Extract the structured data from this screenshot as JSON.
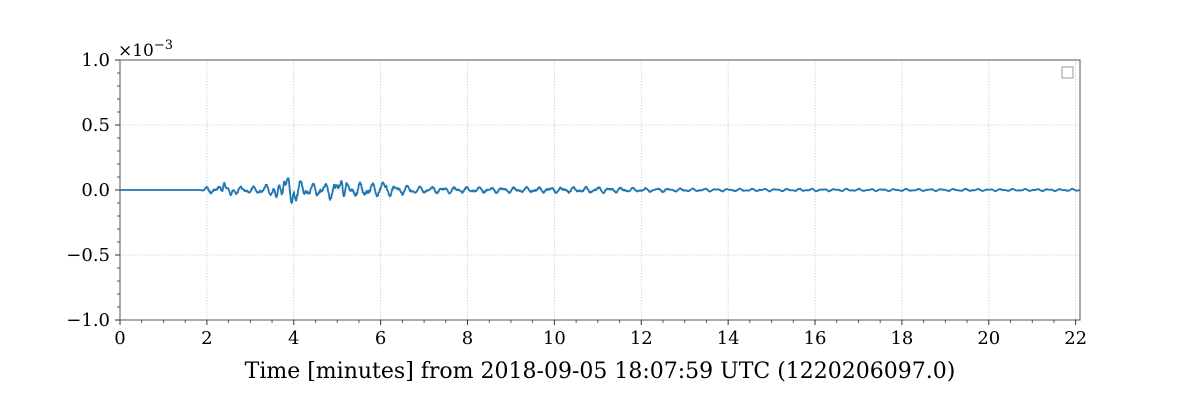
{
  "chart_data": {
    "type": "line",
    "title": "",
    "xlabel": "Time [minutes] from 2018-09-05 18:07:59 UTC (1220206097.0)",
    "ylabel": "",
    "y_offset_text": "×10",
    "y_offset_exponent": "−3",
    "xlim": [
      0,
      22.1
    ],
    "ylim": [
      -1.0,
      1.0
    ],
    "x_ticks": [
      0,
      2,
      4,
      6,
      8,
      10,
      12,
      14,
      16,
      18,
      20,
      22
    ],
    "x_tick_labels": [
      "0",
      "2",
      "4",
      "6",
      "8",
      "10",
      "12",
      "14",
      "16",
      "18",
      "20",
      "22"
    ],
    "y_ticks": [
      -1.0,
      -0.5,
      0.0,
      0.5,
      1.0
    ],
    "y_tick_labels": [
      "−1.0",
      "−0.5",
      "0.0",
      "0.5",
      "1.0"
    ],
    "grid": true,
    "legend": "top-right (empty)",
    "series": [
      {
        "color": "#1f77b4",
        "envelope": [
          {
            "x": 0.0,
            "amp": 0.0
          },
          {
            "x": 1.85,
            "amp": 0.0
          },
          {
            "x": 2.0,
            "amp": 0.03
          },
          {
            "x": 2.3,
            "amp": 0.04
          },
          {
            "x": 2.5,
            "amp": 0.035
          },
          {
            "x": 3.0,
            "amp": 0.03
          },
          {
            "x": 3.5,
            "amp": 0.055
          },
          {
            "x": 3.8,
            "amp": 0.09
          },
          {
            "x": 4.0,
            "amp": 0.1
          },
          {
            "x": 4.4,
            "amp": 0.055
          },
          {
            "x": 5.0,
            "amp": 0.085
          },
          {
            "x": 5.5,
            "amp": 0.065
          },
          {
            "x": 6.0,
            "amp": 0.055
          },
          {
            "x": 7.0,
            "amp": 0.03
          },
          {
            "x": 9.0,
            "amp": 0.025
          },
          {
            "x": 11.0,
            "amp": 0.028
          },
          {
            "x": 12.0,
            "amp": 0.018
          },
          {
            "x": 14.0,
            "amp": 0.012
          },
          {
            "x": 16.0,
            "amp": 0.011
          },
          {
            "x": 18.0,
            "amp": 0.01
          },
          {
            "x": 20.0,
            "amp": 0.01
          },
          {
            "x": 22.1,
            "amp": 0.01
          }
        ],
        "features": [
          {
            "x": 3.78,
            "y": 0.09
          },
          {
            "x": 3.87,
            "y": 0.1
          },
          {
            "x": 3.95,
            "y": -0.12
          },
          {
            "x": 3.6,
            "y": -0.07
          },
          {
            "x": 2.4,
            "y": 0.07
          },
          {
            "x": 2.55,
            "y": -0.05
          },
          {
            "x": 5.1,
            "y": 0.09
          },
          {
            "x": 6.05,
            "y": 0.07
          }
        ]
      }
    ]
  },
  "legend": {
    "entries": []
  }
}
